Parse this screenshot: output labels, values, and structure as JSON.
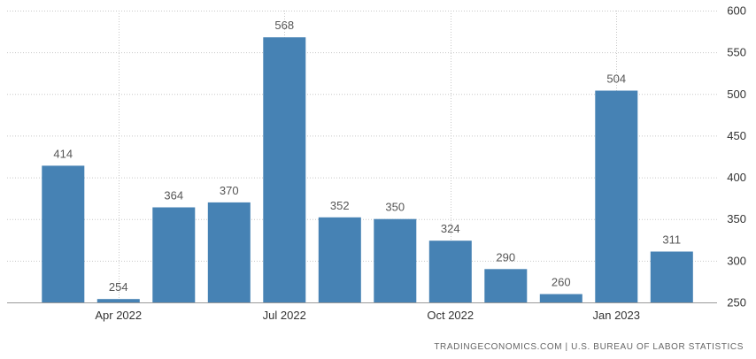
{
  "chart_data": {
    "type": "bar",
    "categories": [
      "Mar 2022",
      "Apr 2022",
      "May 2022",
      "Jun 2022",
      "Jul 2022",
      "Aug 2022",
      "Sep 2022",
      "Oct 2022",
      "Nov 2022",
      "Dec 2022",
      "Jan 2023",
      "Feb 2023"
    ],
    "values": [
      414,
      254,
      364,
      370,
      568,
      352,
      350,
      324,
      290,
      260,
      504,
      311
    ],
    "xticks": [
      {
        "label": "Apr 2022",
        "category_index": 1
      },
      {
        "label": "Jul 2022",
        "category_index": 4
      },
      {
        "label": "Oct 2022",
        "category_index": 7
      },
      {
        "label": "Jan 2023",
        "category_index": 10
      }
    ],
    "yticks": [
      250,
      300,
      350,
      400,
      450,
      500,
      550,
      600
    ],
    "ylim": [
      250,
      600
    ],
    "y_axis_position": "right",
    "grid": true,
    "bar_color": "#4682b4",
    "title": "",
    "xlabel": "",
    "ylabel": ""
  },
  "footer": {
    "source": "TRADINGECONOMICS.COM | U.S. BUREAU OF LABOR STATISTICS"
  }
}
